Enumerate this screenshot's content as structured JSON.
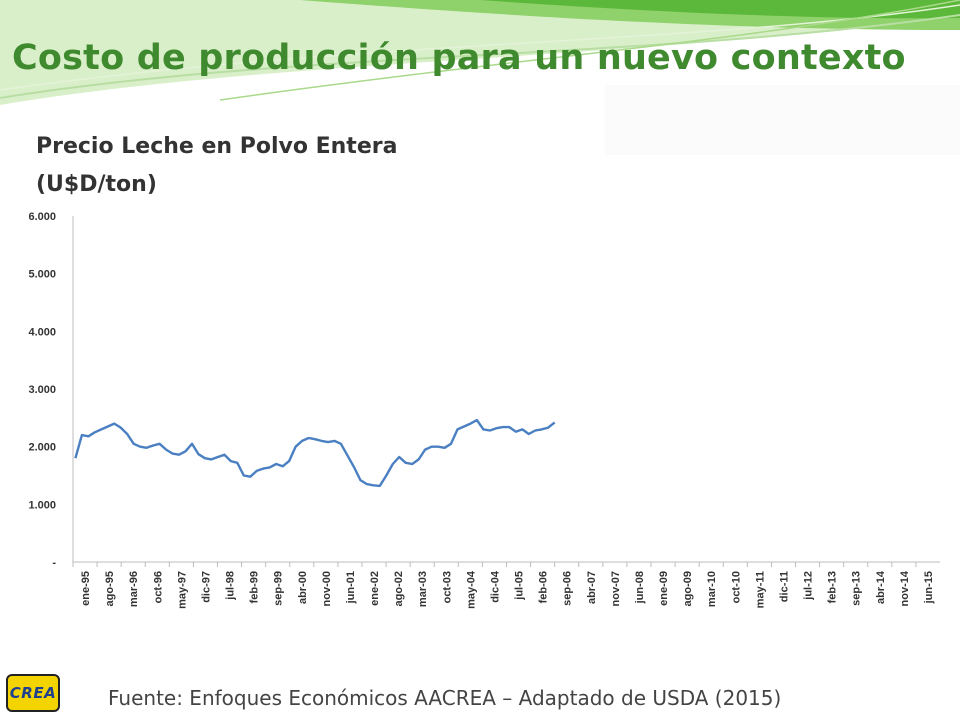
{
  "slide": {
    "title": "Costo de producción para un nuevo contexto",
    "source": "Fuente: Enfoques Económicos AACREA – Adaptado de USDA (2015)",
    "logo_text": "CREA"
  },
  "colors": {
    "title": "#3f8a2e",
    "line": "#4a7fc1",
    "logo_bg": "#f4d400",
    "logo_text": "#1f3f8f"
  },
  "chart_data": {
    "type": "line",
    "title_lines": [
      "Precio Leche en Polvo Entera",
      "(U$D/ton)"
    ],
    "xlabel": "",
    "ylabel": "",
    "ylim": [
      0,
      6000
    ],
    "y_ticks": [
      0,
      1000,
      2000,
      3000,
      4000,
      5000,
      6000
    ],
    "y_tick_labels": [
      "-",
      "1.000",
      "2.000",
      "3.000",
      "4.000",
      "5.000",
      "6.000"
    ],
    "x_range": [
      "ene-95",
      "jun-15"
    ],
    "x_tick_labels": [
      "ene-95",
      "ago-95",
      "mar-96",
      "oct-96",
      "may-97",
      "dic-97",
      "jul-98",
      "feb-99",
      "sep-99",
      "abr-00",
      "nov-00",
      "jun-01",
      "ene-02",
      "ago-02",
      "mar-03",
      "oct-03",
      "may-04",
      "dic-04",
      "jul-05",
      "feb-06",
      "sep-06",
      "abr-07",
      "nov-07",
      "jun-08",
      "ene-09",
      "ago-09",
      "mar-10",
      "oct-10",
      "may-11",
      "dic-11",
      "jul-12",
      "feb-13",
      "sep-13",
      "abr-14",
      "nov-14",
      "jun-15"
    ],
    "legend": "none",
    "grid": false,
    "series": [
      {
        "values": [
          1800,
          2200,
          2180,
          2250,
          2300,
          2350,
          2400,
          2330,
          2220,
          2050,
          2000,
          1980,
          2020,
          2050,
          1950,
          1880,
          1860,
          1920,
          2050,
          1870,
          1800,
          1780,
          1820,
          1860,
          1750,
          1720,
          1500,
          1480,
          1580,
          1620,
          1640,
          1700,
          1660,
          1750,
          2000,
          2100,
          2150,
          2130,
          2100,
          2080,
          2100,
          2050,
          1850,
          1650,
          1420,
          1350,
          1330,
          1320,
          1500,
          1700,
          1820,
          1720,
          1700,
          1780,
          1950,
          2000,
          2000,
          1980,
          2050,
          2300,
          2350,
          2400,
          2460,
          2300,
          2280,
          2320,
          2340,
          2340,
          2260,
          2300,
          2220,
          2280,
          2300,
          2330,
          2420
        ]
      }
    ]
  }
}
